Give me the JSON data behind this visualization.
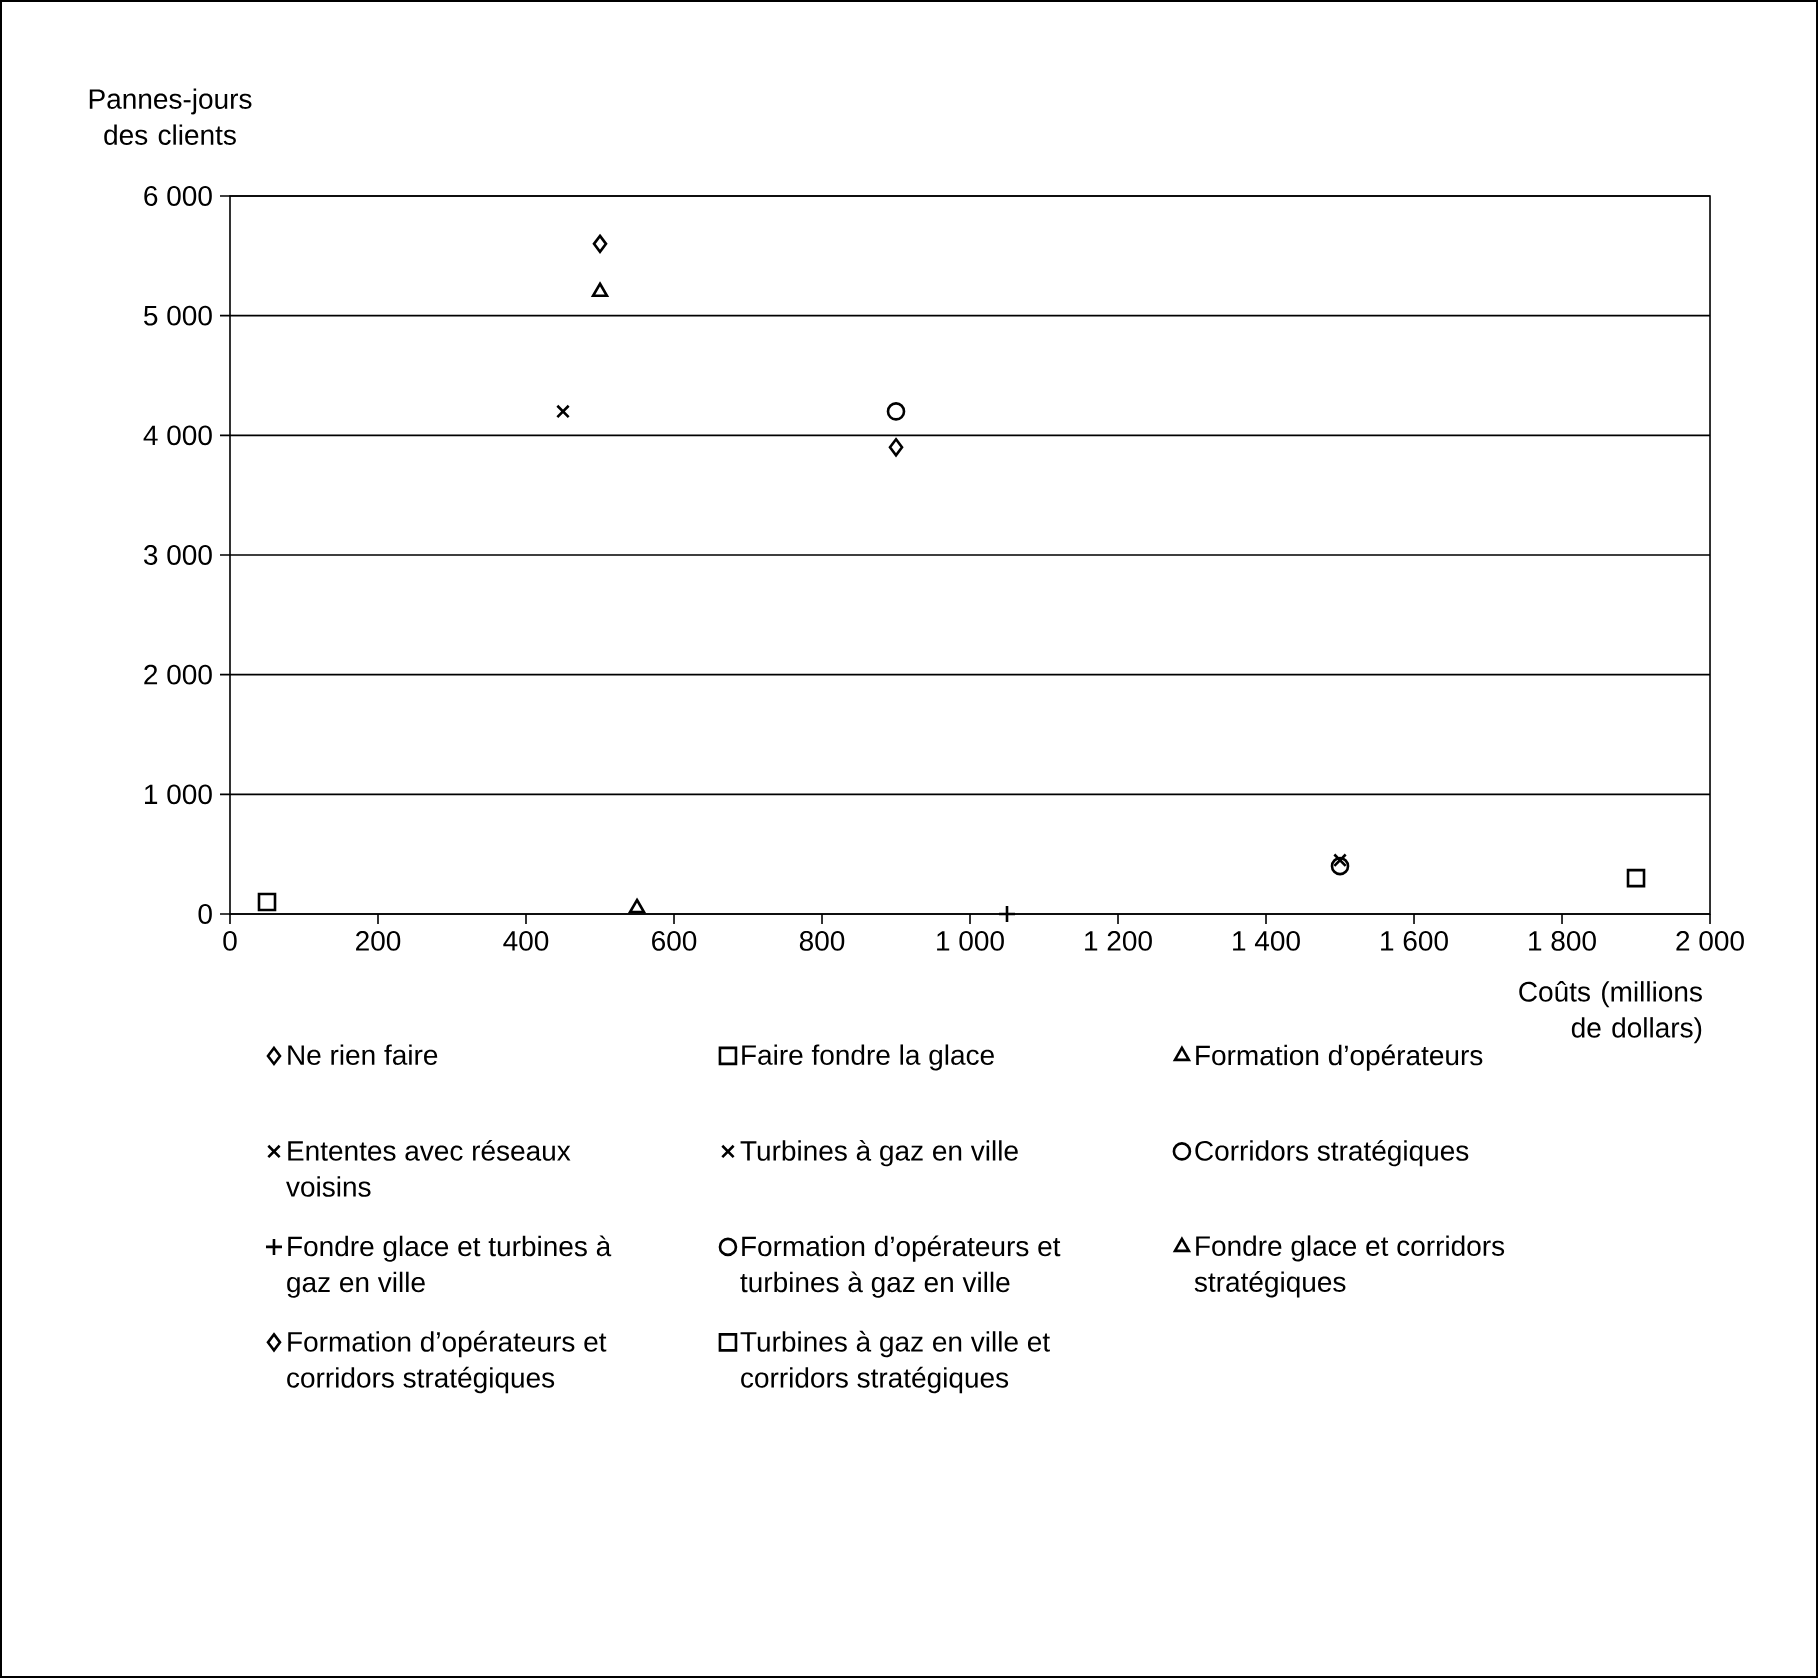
{
  "chart_data": {
    "type": "scatter",
    "xlabel": "Coûts (millions de dollars)",
    "ylabel": "Pannes-jours des clients",
    "xlim": [
      0,
      2000
    ],
    "ylim": [
      0,
      6000
    ],
    "xticks": [
      0,
      200,
      400,
      600,
      800,
      {
        "value": 1000,
        "label": "1 000"
      },
      {
        "value": 1200,
        "label": "1 200"
      },
      {
        "value": 1400,
        "label": "1 400"
      },
      {
        "value": 1600,
        "label": "1 600"
      },
      {
        "value": 1800,
        "label": "1 800"
      },
      {
        "value": 2000,
        "label": "2 000"
      }
    ],
    "yticks": [
      0,
      {
        "value": 1000,
        "label": "1 000"
      },
      {
        "value": 2000,
        "label": "2 000"
      },
      {
        "value": 3000,
        "label": "3 000"
      },
      {
        "value": 4000,
        "label": "4 000"
      },
      {
        "value": 5000,
        "label": "5 000"
      },
      {
        "value": 6000,
        "label": "6 000"
      }
    ],
    "grid": "y",
    "legend": "bottom",
    "series": [
      {
        "name": "Ne rien faire",
        "color": "#000000",
        "marker": "diamond",
        "x": [
          500
        ],
        "values": [
          5600
        ]
      },
      {
        "name": "Faire fondre la glace",
        "color": "#000000",
        "marker": "square",
        "x": [
          50
        ],
        "values": [
          100
        ]
      },
      {
        "name": "Formation d’opérateurs",
        "color": "#000000",
        "marker": "triangle",
        "x": [
          500
        ],
        "values": [
          5200
        ]
      },
      {
        "name": "Ententes avec réseaux voisins",
        "color": "#000000",
        "marker": "cross",
        "x": [
          450
        ],
        "values": [
          4200
        ]
      },
      {
        "name": "Turbines à gaz en ville",
        "color": "#000000",
        "marker": "cross",
        "x": [
          1500
        ],
        "values": [
          450
        ]
      },
      {
        "name": "Corridors stratégiques",
        "color": "#000000",
        "marker": "circle",
        "x": [
          900
        ],
        "values": [
          4200
        ]
      },
      {
        "name": "Fondre glace et turbines à gaz en ville",
        "color": "#000000",
        "marker": "plus",
        "x": [
          1050
        ],
        "values": [
          0
        ]
      },
      {
        "name": "Formation d’opérateurs et turbines à gaz en ville",
        "color": "#000000",
        "marker": "circle",
        "x": [
          1500
        ],
        "values": [
          400
        ]
      },
      {
        "name": "Fondre glace et corridors stratégiques",
        "color": "#000000",
        "marker": "triangle",
        "x": [
          550
        ],
        "values": [
          50
        ]
      },
      {
        "name": "Formation d’opérateurs et corridors stratégiques",
        "color": "#000000",
        "marker": "diamond",
        "x": [
          900
        ],
        "values": [
          3900
        ]
      },
      {
        "name": "Turbines à gaz en ville et corridors stratégiques",
        "color": "#000000",
        "marker": "square",
        "x": [
          1900
        ],
        "values": [
          300
        ]
      }
    ]
  }
}
